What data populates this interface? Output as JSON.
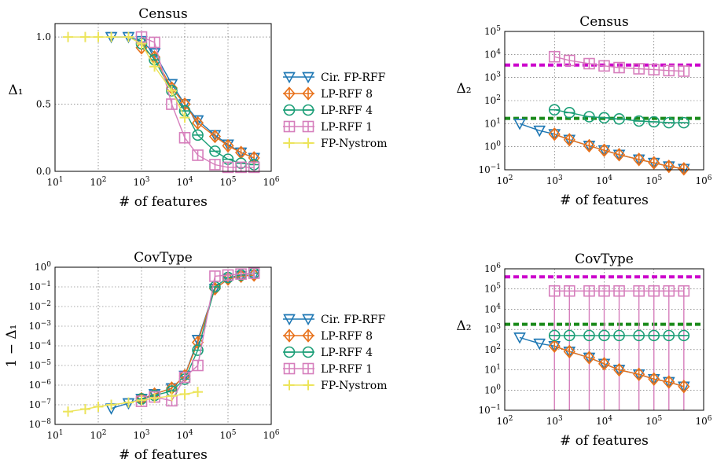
{
  "figure": {
    "xlabel": "# of features",
    "legend": [
      "Cir. FP-RFF",
      "LP-RFF 8",
      "LP-RFF 4",
      "LP-RFF 1",
      "FP-Nystrom"
    ],
    "colors": {
      "Cir. FP-RFF": "#1f78b4",
      "LP-RFF 8": "#e8711a",
      "LP-RFF 4": "#1b9e77",
      "LP-RFF 1": "#d67ebc",
      "FP-Nystrom": "#ece45a",
      "ref_magenta": "#cc00cc",
      "ref_green": "#1a8a1a"
    },
    "markers": {
      "Cir. FP-RFF": "triangle-down-icon",
      "LP-RFF 8": "diamond-icon",
      "LP-RFF 4": "circle-icon",
      "LP-RFF 1": "square-icon",
      "FP-Nystrom": "plus-icon"
    }
  },
  "chart_data": [
    {
      "id": "census-delta1",
      "type": "line",
      "title": "Census",
      "xlabel": "# of features",
      "ylabel": "Δ₁",
      "xscale": "log",
      "yscale": "linear",
      "xlim": [
        10,
        1000000
      ],
      "ylim": [
        0,
        1.1
      ],
      "xticks": [
        "10^1",
        "10^2",
        "10^3",
        "10^4",
        "10^5",
        "10^6"
      ],
      "yticks": [
        "0.0",
        "0.5",
        "1.0"
      ],
      "ytick_values": [
        0,
        0.5,
        1.0
      ],
      "grid": true,
      "legend_position": "right",
      "series": [
        {
          "name": "Cir. FP-RFF",
          "x": [
            200,
            500,
            1000,
            2000,
            5000,
            10000,
            20000,
            50000,
            100000,
            200000,
            400000
          ],
          "y": [
            1.0,
            1.0,
            0.97,
            0.88,
            0.65,
            0.5,
            0.38,
            0.27,
            0.2,
            0.14,
            0.1
          ]
        },
        {
          "name": "LP-RFF 8",
          "x": [
            1000,
            2000,
            5000,
            10000,
            20000,
            50000,
            100000,
            200000,
            400000
          ],
          "y": [
            0.92,
            0.85,
            0.62,
            0.5,
            0.36,
            0.26,
            0.19,
            0.14,
            0.1
          ]
        },
        {
          "name": "LP-RFF 4",
          "x": [
            1000,
            2000,
            5000,
            10000,
            20000,
            50000,
            100000,
            200000,
            400000
          ],
          "y": [
            0.95,
            0.83,
            0.6,
            0.45,
            0.27,
            0.15,
            0.09,
            0.06,
            0.05
          ]
        },
        {
          "name": "LP-RFF 1",
          "x": [
            1000,
            2000,
            5000,
            10000,
            20000,
            50000,
            100000,
            200000,
            400000
          ],
          "y": [
            1.0,
            0.96,
            0.5,
            0.25,
            0.12,
            0.05,
            0.03,
            0.03,
            0.03
          ]
        },
        {
          "name": "FP-Nystrom",
          "x": [
            20,
            50,
            100,
            200,
            500,
            1000,
            2000,
            5000,
            10000
          ],
          "y": [
            1.0,
            1.0,
            1.0,
            1.0,
            1.0,
            0.95,
            0.78,
            0.6,
            0.4
          ]
        }
      ]
    },
    {
      "id": "census-delta2",
      "type": "line",
      "title": "Census",
      "xlabel": "# of features",
      "ylabel": "Δ₂",
      "xscale": "log",
      "yscale": "log",
      "xlim": [
        100,
        1000000
      ],
      "ylim": [
        0.1,
        100000
      ],
      "xticks": [
        "10^2",
        "10^3",
        "10^4",
        "10^5",
        "10^6"
      ],
      "yticks": [
        "10^-1",
        "10^0",
        "10^1",
        "10^2",
        "10^3",
        "10^4",
        "10^5"
      ],
      "grid": true,
      "reference_lines": [
        {
          "color": "ref_magenta",
          "y": 3500
        },
        {
          "color": "ref_green",
          "y": 17
        }
      ],
      "series": [
        {
          "name": "Cir. FP-RFF",
          "x": [
            200,
            500,
            1000,
            2000,
            5000,
            10000,
            20000,
            50000,
            100000,
            200000,
            400000
          ],
          "y": [
            10,
            5,
            3.5,
            2,
            1.1,
            0.7,
            0.45,
            0.28,
            0.2,
            0.14,
            0.11
          ]
        },
        {
          "name": "LP-RFF 8",
          "x": [
            1000,
            2000,
            5000,
            10000,
            20000,
            50000,
            100000,
            200000,
            400000
          ],
          "y": [
            3.5,
            2,
            1.1,
            0.7,
            0.45,
            0.28,
            0.2,
            0.14,
            0.11
          ]
        },
        {
          "name": "LP-RFF 4",
          "x": [
            1000,
            2000,
            5000,
            10000,
            20000,
            50000,
            100000,
            200000,
            400000
          ],
          "y": [
            40,
            30,
            20,
            18,
            16,
            13,
            12,
            11,
            11
          ]
        },
        {
          "name": "LP-RFF 1",
          "x": [
            1000,
            2000,
            5000,
            10000,
            20000,
            50000,
            100000,
            200000,
            400000
          ],
          "y": [
            8000,
            5500,
            4000,
            3200,
            2700,
            2400,
            2200,
            2000,
            1900
          ]
        }
      ]
    },
    {
      "id": "covtype-delta1",
      "type": "line",
      "title": "CovType",
      "xlabel": "# of features",
      "ylabel": "1 − Δ₁",
      "xscale": "log",
      "yscale": "log",
      "xlim": [
        10,
        1000000
      ],
      "ylim": [
        1e-08,
        1
      ],
      "xticks": [
        "10^1",
        "10^2",
        "10^3",
        "10^4",
        "10^5",
        "10^6"
      ],
      "yticks": [
        "10^-8",
        "10^-7",
        "10^-6",
        "10^-5",
        "10^-4",
        "10^-3",
        "10^-2",
        "10^-1",
        "10^0"
      ],
      "grid": true,
      "legend_position": "right",
      "series": [
        {
          "name": "Cir. FP-RFF",
          "x": [
            200,
            500,
            1000,
            2000,
            5000,
            10000,
            20000,
            50000,
            100000,
            200000,
            400000
          ],
          "y": [
            6.5e-08,
            1.2e-07,
            2e-07,
            3.5e-07,
            7e-07,
            3e-06,
            0.0002,
            0.08,
            0.25,
            0.35,
            0.4
          ]
        },
        {
          "name": "LP-RFF 8",
          "x": [
            1000,
            2000,
            5000,
            10000,
            20000,
            50000,
            100000,
            200000,
            400000
          ],
          "y": [
            2e-07,
            3.5e-07,
            7e-07,
            3e-06,
            0.00015,
            0.08,
            0.25,
            0.35,
            0.4
          ]
        },
        {
          "name": "LP-RFF 4",
          "x": [
            1000,
            2000,
            5000,
            10000,
            20000,
            50000,
            100000,
            200000,
            400000
          ],
          "y": [
            2e-07,
            3e-07,
            5e-07,
            2e-06,
            6e-05,
            0.1,
            0.3,
            0.4,
            0.5
          ]
        },
        {
          "name": "LP-RFF 1",
          "x": [
            1000,
            2000,
            5000,
            10000,
            20000,
            50000,
            100000,
            200000,
            400000
          ],
          "y": [
            1.5e-07,
            2.5e-07,
            1.6e-07,
            2.5e-06,
            1e-05,
            0.35,
            0.4,
            0.45,
            0.5
          ]
        },
        {
          "name": "FP-Nystrom",
          "x": [
            20,
            50,
            100,
            200,
            500,
            1000,
            2000,
            5000,
            10000,
            20000
          ],
          "y": [
            4.5e-08,
            6e-08,
            8e-08,
            1e-07,
            1.3e-07,
            1.7e-07,
            2.2e-07,
            2.8e-07,
            3.5e-07,
            4.5e-07
          ]
        }
      ]
    },
    {
      "id": "covtype-delta2",
      "type": "line",
      "title": "CovType",
      "xlabel": "# of features",
      "ylabel": "Δ₂",
      "xscale": "log",
      "yscale": "log",
      "xlim": [
        100,
        1000000
      ],
      "ylim": [
        0.1,
        1000000
      ],
      "xticks": [
        "10^2",
        "10^3",
        "10^4",
        "10^5",
        "10^6"
      ],
      "yticks": [
        "10^-1",
        "10^0",
        "10^1",
        "10^2",
        "10^3",
        "10^4",
        "10^5",
        "10^6"
      ],
      "grid": true,
      "reference_lines": [
        {
          "color": "ref_magenta",
          "y": 400000
        },
        {
          "color": "ref_green",
          "y": 1800
        }
      ],
      "series": [
        {
          "name": "Cir. FP-RFF",
          "x": [
            200,
            500,
            1000,
            2000,
            5000,
            10000,
            20000,
            50000,
            100000,
            200000,
            400000
          ],
          "y": [
            400,
            200,
            150,
            80,
            40,
            20,
            10,
            6,
            3.5,
            2.5,
            1.5
          ]
        },
        {
          "name": "LP-RFF 8",
          "x": [
            1000,
            2000,
            5000,
            10000,
            20000,
            50000,
            100000,
            200000,
            400000
          ],
          "y": [
            150,
            80,
            40,
            20,
            10,
            6,
            3.5,
            2.5,
            1.5
          ]
        },
        {
          "name": "LP-RFF 4",
          "x": [
            1000,
            2000,
            5000,
            10000,
            20000,
            50000,
            100000,
            200000,
            400000
          ],
          "y": [
            500,
            500,
            500,
            500,
            500,
            500,
            500,
            500,
            500
          ]
        },
        {
          "name": "LP-RFF 1",
          "x": [
            1000,
            2000,
            5000,
            10000,
            20000,
            50000,
            100000,
            200000,
            400000
          ],
          "y": [
            80000,
            80000,
            80000,
            80000,
            80000,
            80000,
            80000,
            80000,
            80000
          ]
        }
      ]
    }
  ]
}
